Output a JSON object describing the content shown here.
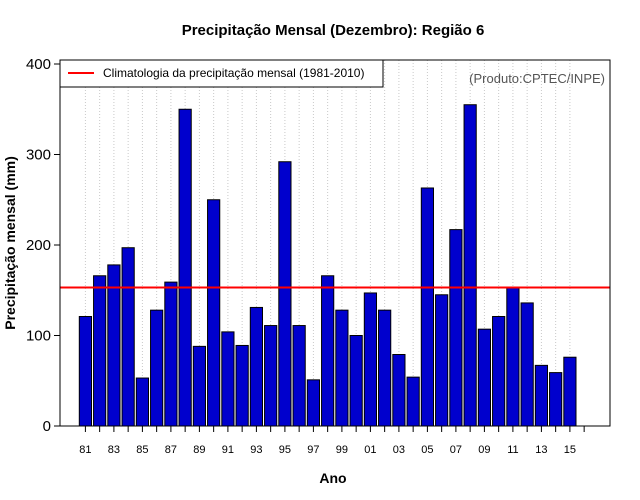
{
  "chart_data": {
    "type": "bar",
    "title": "Precipitação Mensal (Dezembro): Região 6",
    "xlabel": "Ano",
    "ylabel": "Precipitação mensal (mm)",
    "ylim": [
      0,
      400
    ],
    "yticks": [
      0,
      100,
      200,
      300,
      400
    ],
    "grid": "vertical-dotted",
    "categories": [
      "81",
      "82",
      "83",
      "84",
      "85",
      "86",
      "87",
      "88",
      "89",
      "90",
      "91",
      "92",
      "93",
      "94",
      "95",
      "96",
      "97",
      "98",
      "99",
      "00",
      "01",
      "02",
      "03",
      "04",
      "05",
      "06",
      "07",
      "08",
      "09",
      "10",
      "11",
      "12",
      "13",
      "14",
      "15"
    ],
    "tick_labels": [
      "81",
      "83",
      "85",
      "87",
      "89",
      "91",
      "93",
      "95",
      "97",
      "99",
      "01",
      "03",
      "05",
      "07",
      "09",
      "11",
      "13",
      "15"
    ],
    "values": [
      121,
      166,
      178,
      197,
      53,
      128,
      159,
      350,
      88,
      250,
      104,
      89,
      131,
      111,
      292,
      111,
      51,
      166,
      128,
      100,
      147,
      128,
      79,
      54,
      263,
      145,
      217,
      355,
      107,
      121,
      153,
      136,
      67,
      59,
      76
    ],
    "bar_color": "#0000cd",
    "reference_line": {
      "value": 153,
      "color": "#ff0000",
      "label": "Climatologia da precipitação mensal (1981-2010)"
    },
    "legend_position": "top-left",
    "credit": "(Produto:CPTEC/INPE)"
  }
}
